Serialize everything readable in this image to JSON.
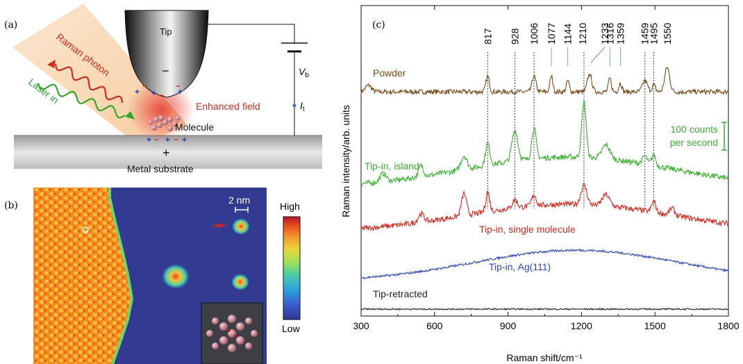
{
  "panel_a": {
    "label": "(a)",
    "tip": "Tip",
    "raman": "Raman photon",
    "laser": "Laser in",
    "field": "Enhanced field",
    "molecule": "Molecule",
    "substrate": "Metal substrate",
    "vb": "V",
    "vb_sub": "b",
    "it": "I",
    "it_sub": "t",
    "minus": "−",
    "plus": "+",
    "colors": {
      "raman": "#d42a1e",
      "laser": "#2fa82b",
      "field": "#d42a1e",
      "charge_plus": "#1f3fb0",
      "charge_minus": "#d42a1e"
    }
  },
  "panel_b": {
    "label": "(b)",
    "scale": "2 nm",
    "high": "High",
    "low": "Low",
    "colormap": [
      "#313695",
      "#3a5fcd",
      "#2aa7de",
      "#4fd1a0",
      "#9be05a",
      "#e6d83a",
      "#f59a2c",
      "#e8461e",
      "#b2182b"
    ]
  },
  "panel_c": {
    "label": "(c)",
    "scale_text": [
      "100 counts",
      "per second"
    ],
    "peak_labels": [
      "817",
      "928",
      "1006",
      "1077",
      "1144",
      "1210",
      "1233",
      "1316",
      "1359",
      "1459",
      "1495",
      "1550"
    ]
  },
  "chart_data": {
    "type": "line",
    "xlabel": "Raman shift/cm⁻¹",
    "ylabel": "Raman intensity/arb. units",
    "xlim": [
      300,
      1800
    ],
    "xticks": [
      300,
      600,
      900,
      1200,
      1500,
      1800
    ],
    "dotted_peak_lines": [
      817,
      928,
      1006,
      1210,
      1459,
      1495
    ],
    "series": [
      {
        "name": "Powder",
        "color": "#7a4a17",
        "baseline": 8,
        "noise": 2.2,
        "peaks": [
          [
            330,
            6,
            12
          ],
          [
            817,
            14,
            7
          ],
          [
            1006,
            14,
            8
          ],
          [
            1077,
            14,
            6
          ],
          [
            1144,
            10,
            6
          ],
          [
            1233,
            16,
            9
          ],
          [
            1316,
            12,
            6
          ],
          [
            1359,
            8,
            6
          ],
          [
            1459,
            10,
            10
          ],
          [
            1495,
            6,
            7
          ],
          [
            1550,
            22,
            10
          ]
        ]
      },
      {
        "name": "Tip-in, island",
        "color": "#35b52a",
        "baseline": 4,
        "noise": 2.0,
        "hump": [
          1150,
          420,
          22
        ],
        "peaks": [
          [
            390,
            6,
            12
          ],
          [
            545,
            8,
            10
          ],
          [
            720,
            10,
            12
          ],
          [
            817,
            16,
            9
          ],
          [
            928,
            22,
            12
          ],
          [
            1006,
            22,
            9
          ],
          [
            1210,
            40,
            9
          ],
          [
            1300,
            10,
            16
          ],
          [
            1459,
            6,
            10
          ],
          [
            1495,
            8,
            8
          ]
        ]
      },
      {
        "name": "Tip-in, single molecule",
        "color": "#e0251b",
        "baseline": 4,
        "noise": 2.0,
        "hump": [
          1150,
          420,
          20
        ],
        "peaks": [
          [
            545,
            6,
            12
          ],
          [
            720,
            16,
            10
          ],
          [
            817,
            14,
            8
          ],
          [
            928,
            6,
            10
          ],
          [
            1006,
            8,
            9
          ],
          [
            1210,
            14,
            12
          ],
          [
            1300,
            8,
            15
          ],
          [
            1495,
            8,
            8
          ],
          [
            1570,
            5,
            10
          ]
        ]
      },
      {
        "name": "Tip-in, Ag(111)",
        "color": "#2a44d6",
        "baseline": 0,
        "noise": 1.0,
        "hump": [
          1180,
          420,
          28
        ],
        "peaks": []
      },
      {
        "name": "Tip-retracted",
        "color": "#222222",
        "baseline": 0,
        "noise": 1.0,
        "peaks": []
      }
    ]
  }
}
